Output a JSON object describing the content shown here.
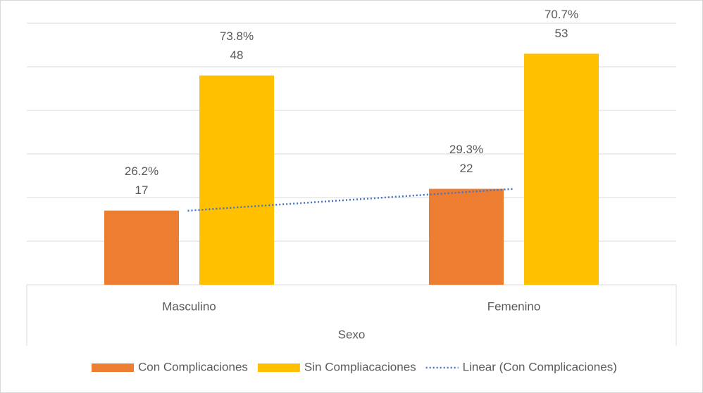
{
  "chart_data": {
    "type": "bar",
    "x_label": "Sexo",
    "categories": [
      "Masculino",
      "Femenino"
    ],
    "series": [
      {
        "name": "Con Complicaciones",
        "color": "#ed7d31",
        "values": [
          17,
          22
        ],
        "percent_labels": [
          "26.2%",
          "29.3%"
        ]
      },
      {
        "name": "Sin Compliacaciones",
        "color": "#ffc000",
        "values": [
          48,
          53
        ],
        "percent_labels": [
          "73.8%",
          "70.7%"
        ]
      }
    ],
    "trendline": {
      "name": "Linear (Con Complicaciones)",
      "color": "#4472c4",
      "series": 0
    },
    "ylim": [
      0,
      60
    ],
    "yticks": [
      0,
      10,
      20,
      30,
      40,
      50,
      60
    ],
    "grid": true,
    "legend": "bottom"
  }
}
